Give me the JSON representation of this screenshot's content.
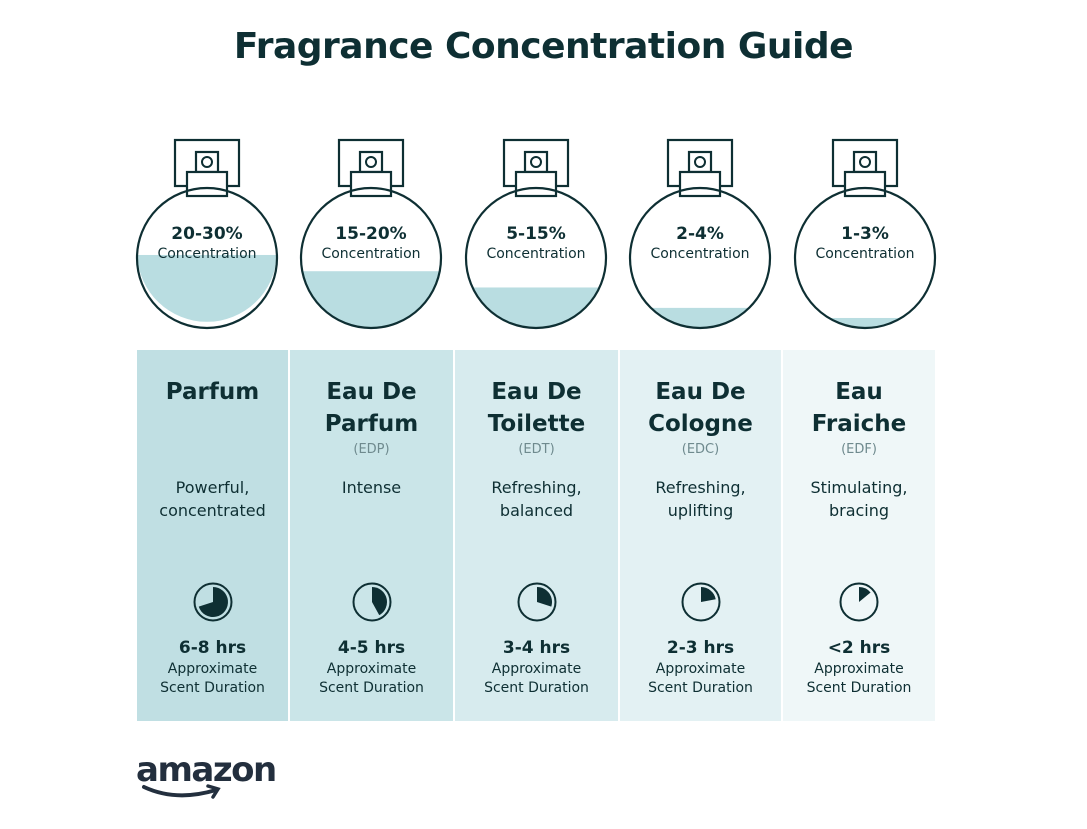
{
  "title": "Fragrance Concentration Guide",
  "colors": {
    "text": "#0e2f33",
    "liquid": "#b9dde1",
    "accent_muted": "#6f8a8e"
  },
  "concentration_label": "Concentration",
  "duration_label_1": "Approximate",
  "duration_label_2": "Scent Duration",
  "items": [
    {
      "pct": "20-30%",
      "name1": "Parfum",
      "name2": "",
      "abbr": "",
      "desc1": "Powerful,",
      "desc2": "concentrated",
      "hrs": "6-8 hrs",
      "liquid_level": 0.36,
      "clock_fraction": 0.7,
      "bg": "#c0dfe3"
    },
    {
      "pct": "15-20%",
      "name1": "Eau De",
      "name2": "Parfum",
      "abbr": "(EDP)",
      "desc1": "Intense",
      "desc2": "",
      "hrs": "4-5 hrs",
      "liquid_level": 0.28,
      "clock_fraction": 0.42,
      "bg": "#cae5e8"
    },
    {
      "pct": "5-15%",
      "name1": "Eau De",
      "name2": "Toilette",
      "abbr": "(EDT)",
      "desc1": "Refreshing,",
      "desc2": "balanced",
      "hrs": "3-4 hrs",
      "liquid_level": 0.2,
      "clock_fraction": 0.3,
      "bg": "#d7ebee"
    },
    {
      "pct": "2-4%",
      "name1": "Eau De",
      "name2": "Cologne",
      "abbr": "(EDC)",
      "desc1": "Refreshing,",
      "desc2": "uplifting",
      "hrs": "2-3 hrs",
      "liquid_level": 0.1,
      "clock_fraction": 0.22,
      "bg": "#e3f1f3"
    },
    {
      "pct": "1-3%",
      "name1": "Eau",
      "name2": "Fraiche",
      "abbr": "(EDF)",
      "desc1": "Stimulating,",
      "desc2": "bracing",
      "hrs": "<2 hrs",
      "liquid_level": 0.05,
      "clock_fraction": 0.14,
      "bg": "#eff7f8"
    }
  ],
  "logo": "amazon"
}
